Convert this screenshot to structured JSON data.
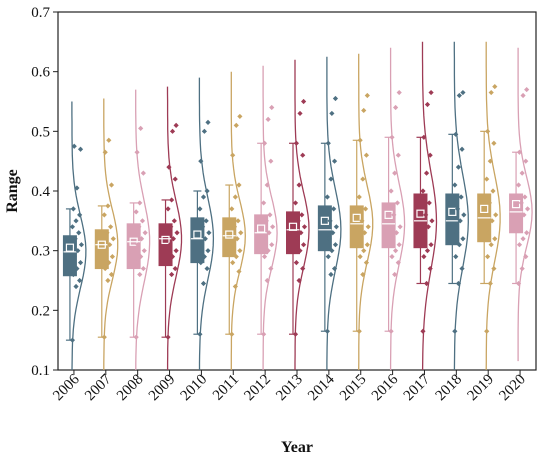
{
  "chart_data": {
    "type": "box-violin-scatter",
    "xlabel": "Year",
    "ylabel": "Range",
    "ylim": [
      0.1,
      0.7
    ],
    "yticks": [
      "0.1",
      "0.2",
      "0.3",
      "0.4",
      "0.5",
      "0.6",
      "0.7"
    ],
    "categories": [
      "2006",
      "2007",
      "2008",
      "2009",
      "2010",
      "2011",
      "2012",
      "2013",
      "2014",
      "2015",
      "2016",
      "2017",
      "2018",
      "2019",
      "2020"
    ],
    "colors": [
      "#4E7082",
      "#C9A562",
      "#D9A0B4",
      "#9E3B55",
      "#4E7082",
      "#C9A562",
      "#D9A0B4",
      "#9E3B55",
      "#4E7082",
      "#C9A562",
      "#D9A0B4",
      "#9E3B55",
      "#4E7082",
      "#C9A562",
      "#D9A0B4"
    ],
    "series": [
      {
        "year": "2006",
        "min": 0.15,
        "q1": 0.258,
        "median": 0.298,
        "q3": 0.325,
        "max": 0.37,
        "mean": 0.305,
        "whisker_low": 0.15,
        "whisker_high": 0.37,
        "curve_min": 0.1,
        "curve_max": 0.55,
        "points": [
          0.15,
          0.24,
          0.25,
          0.26,
          0.27,
          0.28,
          0.29,
          0.3,
          0.31,
          0.32,
          0.33,
          0.34,
          0.35,
          0.36,
          0.37,
          0.405,
          0.47,
          0.475
        ]
      },
      {
        "year": "2007",
        "min": 0.155,
        "q1": 0.27,
        "median": 0.31,
        "q3": 0.335,
        "max": 0.375,
        "mean": 0.31,
        "whisker_low": 0.155,
        "whisker_high": 0.375,
        "curve_min": 0.1,
        "curve_max": 0.555,
        "points": [
          0.155,
          0.25,
          0.26,
          0.27,
          0.28,
          0.29,
          0.3,
          0.31,
          0.32,
          0.33,
          0.34,
          0.36,
          0.375,
          0.41,
          0.465,
          0.485
        ]
      },
      {
        "year": "2008",
        "min": 0.155,
        "q1": 0.27,
        "median": 0.315,
        "q3": 0.345,
        "max": 0.38,
        "mean": 0.315,
        "whisker_low": 0.155,
        "whisker_high": 0.38,
        "curve_min": 0.1,
        "curve_max": 0.57,
        "points": [
          0.155,
          0.26,
          0.27,
          0.28,
          0.29,
          0.3,
          0.31,
          0.32,
          0.33,
          0.34,
          0.35,
          0.365,
          0.38,
          0.43,
          0.465,
          0.505
        ]
      },
      {
        "year": "2009",
        "min": 0.155,
        "q1": 0.275,
        "median": 0.32,
        "q3": 0.345,
        "max": 0.385,
        "mean": 0.318,
        "whisker_low": 0.155,
        "whisker_high": 0.385,
        "curve_min": 0.1,
        "curve_max": 0.575,
        "points": [
          0.155,
          0.26,
          0.27,
          0.28,
          0.29,
          0.3,
          0.31,
          0.32,
          0.33,
          0.34,
          0.35,
          0.37,
          0.385,
          0.42,
          0.44,
          0.5,
          0.51
        ]
      },
      {
        "year": "2010",
        "min": 0.16,
        "q1": 0.28,
        "median": 0.32,
        "q3": 0.355,
        "max": 0.4,
        "mean": 0.327,
        "whisker_low": 0.16,
        "whisker_high": 0.4,
        "curve_min": 0.1,
        "curve_max": 0.59,
        "points": [
          0.16,
          0.245,
          0.27,
          0.28,
          0.29,
          0.3,
          0.31,
          0.32,
          0.33,
          0.34,
          0.35,
          0.37,
          0.39,
          0.4,
          0.45,
          0.5,
          0.515
        ]
      },
      {
        "year": "2011",
        "min": 0.16,
        "q1": 0.29,
        "median": 0.325,
        "q3": 0.355,
        "max": 0.41,
        "mean": 0.327,
        "whisker_low": 0.16,
        "whisker_high": 0.41,
        "curve_min": 0.1,
        "curve_max": 0.6,
        "points": [
          0.16,
          0.24,
          0.265,
          0.28,
          0.29,
          0.3,
          0.31,
          0.32,
          0.33,
          0.34,
          0.35,
          0.37,
          0.39,
          0.41,
          0.46,
          0.51,
          0.525
        ]
      },
      {
        "year": "2012",
        "min": 0.16,
        "q1": 0.295,
        "median": 0.33,
        "q3": 0.36,
        "max": 0.48,
        "mean": 0.337,
        "whisker_low": 0.16,
        "whisker_high": 0.48,
        "curve_min": 0.1,
        "curve_max": 0.61,
        "points": [
          0.16,
          0.25,
          0.27,
          0.29,
          0.3,
          0.31,
          0.32,
          0.33,
          0.34,
          0.35,
          0.36,
          0.38,
          0.41,
          0.45,
          0.48,
          0.52,
          0.54
        ]
      },
      {
        "year": "2013",
        "min": 0.16,
        "q1": 0.295,
        "median": 0.335,
        "q3": 0.365,
        "max": 0.48,
        "mean": 0.34,
        "whisker_low": 0.16,
        "whisker_high": 0.48,
        "curve_min": 0.1,
        "curve_max": 0.62,
        "points": [
          0.16,
          0.25,
          0.27,
          0.28,
          0.3,
          0.31,
          0.32,
          0.33,
          0.34,
          0.35,
          0.36,
          0.38,
          0.41,
          0.46,
          0.48,
          0.53,
          0.55
        ]
      },
      {
        "year": "2014",
        "min": 0.165,
        "q1": 0.3,
        "median": 0.335,
        "q3": 0.375,
        "max": 0.48,
        "mean": 0.35,
        "whisker_low": 0.165,
        "whisker_high": 0.48,
        "curve_min": 0.1,
        "curve_max": 0.625,
        "points": [
          0.165,
          0.26,
          0.27,
          0.29,
          0.3,
          0.31,
          0.32,
          0.33,
          0.34,
          0.35,
          0.37,
          0.39,
          0.42,
          0.45,
          0.48,
          0.53,
          0.555
        ]
      },
      {
        "year": "2015",
        "min": 0.165,
        "q1": 0.305,
        "median": 0.345,
        "q3": 0.375,
        "max": 0.485,
        "mean": 0.355,
        "whisker_low": 0.165,
        "whisker_high": 0.485,
        "curve_min": 0.1,
        "curve_max": 0.63,
        "points": [
          0.165,
          0.26,
          0.28,
          0.29,
          0.3,
          0.31,
          0.32,
          0.33,
          0.34,
          0.35,
          0.37,
          0.39,
          0.42,
          0.46,
          0.485,
          0.535,
          0.56
        ]
      },
      {
        "year": "2016",
        "min": 0.165,
        "q1": 0.305,
        "median": 0.345,
        "q3": 0.38,
        "max": 0.49,
        "mean": 0.36,
        "whisker_low": 0.165,
        "whisker_high": 0.49,
        "curve_min": 0.1,
        "curve_max": 0.64,
        "points": [
          0.165,
          0.26,
          0.28,
          0.29,
          0.3,
          0.31,
          0.32,
          0.33,
          0.34,
          0.36,
          0.38,
          0.4,
          0.43,
          0.46,
          0.49,
          0.54,
          0.565
        ]
      },
      {
        "year": "2017",
        "min": 0.165,
        "q1": 0.305,
        "median": 0.35,
        "q3": 0.395,
        "max": 0.49,
        "mean": 0.362,
        "whisker_low": 0.245,
        "whisker_high": 0.49,
        "curve_min": 0.1,
        "curve_max": 0.65,
        "points": [
          0.165,
          0.245,
          0.27,
          0.29,
          0.3,
          0.31,
          0.32,
          0.34,
          0.35,
          0.36,
          0.38,
          0.4,
          0.43,
          0.46,
          0.49,
          0.545,
          0.565
        ]
      },
      {
        "year": "2018",
        "min": 0.165,
        "q1": 0.31,
        "median": 0.35,
        "q3": 0.395,
        "max": 0.495,
        "mean": 0.365,
        "whisker_low": 0.245,
        "whisker_high": 0.495,
        "curve_min": 0.1,
        "curve_max": 0.65,
        "points": [
          0.165,
          0.245,
          0.27,
          0.29,
          0.31,
          0.32,
          0.33,
          0.35,
          0.36,
          0.37,
          0.39,
          0.41,
          0.44,
          0.47,
          0.495,
          0.56,
          0.565
        ]
      },
      {
        "year": "2019",
        "min": 0.165,
        "q1": 0.315,
        "median": 0.355,
        "q3": 0.395,
        "max": 0.5,
        "mean": 0.37,
        "whisker_low": 0.245,
        "whisker_high": 0.5,
        "curve_min": 0.1,
        "curve_max": 0.65,
        "points": [
          0.165,
          0.245,
          0.27,
          0.29,
          0.31,
          0.32,
          0.33,
          0.35,
          0.36,
          0.38,
          0.4,
          0.42,
          0.45,
          0.48,
          0.5,
          0.565,
          0.575
        ]
      },
      {
        "year": "2020",
        "min": 0.245,
        "q1": 0.33,
        "median": 0.365,
        "q3": 0.395,
        "max": 0.465,
        "mean": 0.378,
        "whisker_low": 0.245,
        "whisker_high": 0.465,
        "curve_min": 0.115,
        "curve_max": 0.64,
        "points": [
          0.245,
          0.27,
          0.29,
          0.31,
          0.32,
          0.33,
          0.35,
          0.36,
          0.37,
          0.38,
          0.39,
          0.41,
          0.43,
          0.45,
          0.465,
          0.56,
          0.57
        ]
      }
    ]
  }
}
